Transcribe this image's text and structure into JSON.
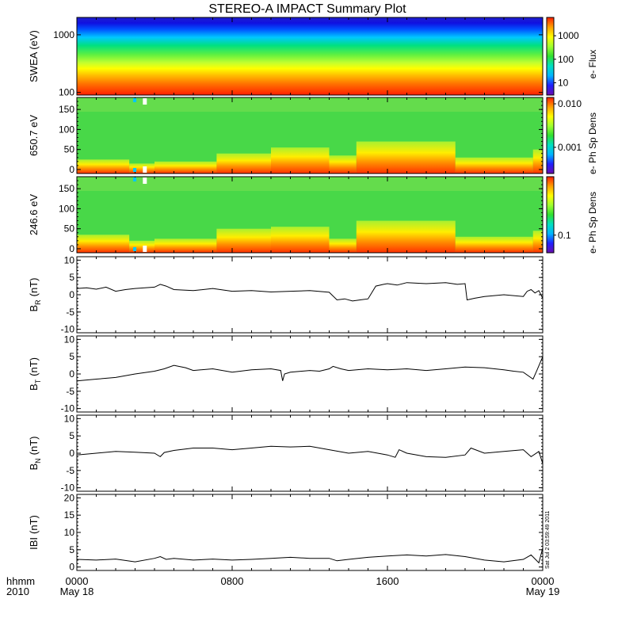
{
  "title": "STEREO-A IMPACT Summary Plot",
  "timestamp": "Sat Jul  2 03:59:49 2011",
  "time_axis": {
    "label_line1": "hhmm",
    "label_line2": "2010",
    "ticks": [
      {
        "hours": 0,
        "label": "0000",
        "date": "May 18"
      },
      {
        "hours": 8,
        "label": "0800",
        "date": ""
      },
      {
        "hours": 16,
        "label": "1600",
        "date": ""
      },
      {
        "hours": 24,
        "label": "0000",
        "date": "May 19"
      }
    ]
  },
  "colorscale": [
    "#6a0dad",
    "#2020ff",
    "#00b4ff",
    "#00e0c0",
    "#30e030",
    "#a0ff30",
    "#ffff00",
    "#ffa000",
    "#ff2000"
  ],
  "chart_data": [
    {
      "type": "heatmap",
      "ylabel": "SWEA (eV)",
      "yscale": "log",
      "ylim": [
        90,
        2000
      ],
      "yticks": [
        {
          "v": 100,
          "label": "100"
        },
        {
          "v": 1000,
          "label": "1000"
        }
      ],
      "colorbar": {
        "label": "e- Flux",
        "scale": "log",
        "range": [
          3,
          6000
        ],
        "ticks": [
          {
            "v": 10,
            "label": "10"
          },
          {
            "v": 100,
            "label": "100"
          },
          {
            "v": 1000,
            "label": "1000"
          }
        ]
      },
      "energy_color_profile": [
        {
          "energy": 90,
          "color": "#ff2000"
        },
        {
          "energy": 140,
          "color": "#ff7000"
        },
        {
          "energy": 200,
          "color": "#ffc000"
        },
        {
          "energy": 260,
          "color": "#ffff00"
        },
        {
          "energy": 330,
          "color": "#c0ff30"
        },
        {
          "energy": 450,
          "color": "#60f040"
        },
        {
          "energy": 650,
          "color": "#00e080"
        },
        {
          "energy": 900,
          "color": "#00c8ff"
        },
        {
          "energy": 1250,
          "color": "#0050ff"
        },
        {
          "energy": 1600,
          "color": "#1010e0"
        },
        {
          "energy": 2000,
          "color": "#2020d0"
        }
      ]
    },
    {
      "type": "heatmap",
      "ylabel": "650.7 eV",
      "ylim": [
        -10,
        180
      ],
      "yticks": [
        {
          "v": 0,
          "label": "0"
        },
        {
          "v": 50,
          "label": "50"
        },
        {
          "v": 100,
          "label": "100"
        },
        {
          "v": 150,
          "label": "150"
        }
      ],
      "colorbar": {
        "label": "e- Ph Sp Dens",
        "scale": "log",
        "range": [
          0.00025,
          0.014
        ],
        "ticks": [
          {
            "v": 0.001,
            "label": "0.001"
          },
          {
            "v": 0.01,
            "label": "0.010"
          }
        ]
      },
      "hot_level_by_hour": [
        {
          "start": 0,
          "end": 2.7,
          "level": 25
        },
        {
          "start": 2.7,
          "end": 4.0,
          "level": 15
        },
        {
          "start": 4.0,
          "end": 7.2,
          "level": 20
        },
        {
          "start": 7.2,
          "end": 10.0,
          "level": 40
        },
        {
          "start": 10.0,
          "end": 13.0,
          "level": 55
        },
        {
          "start": 13.0,
          "end": 14.4,
          "level": 35
        },
        {
          "start": 14.4,
          "end": 19.5,
          "level": 70
        },
        {
          "start": 19.5,
          "end": 23.5,
          "level": 30
        },
        {
          "start": 23.5,
          "end": 24.0,
          "level": 50
        }
      ]
    },
    {
      "type": "heatmap",
      "ylabel": "246.6 eV",
      "ylim": [
        -10,
        180
      ],
      "yticks": [
        {
          "v": 0,
          "label": "0"
        },
        {
          "v": 50,
          "label": "50"
        },
        {
          "v": 100,
          "label": "100"
        },
        {
          "v": 150,
          "label": "150"
        }
      ],
      "colorbar": {
        "label": "e- Ph Sp Dens",
        "scale": "log",
        "range": [
          0.05,
          1.0
        ],
        "ticks": [
          {
            "v": 0.1,
            "label": "0.1"
          }
        ]
      },
      "hot_level_by_hour": [
        {
          "start": 0,
          "end": 2.7,
          "level": 35
        },
        {
          "start": 2.7,
          "end": 4.0,
          "level": 20
        },
        {
          "start": 4.0,
          "end": 7.2,
          "level": 25
        },
        {
          "start": 7.2,
          "end": 10.0,
          "level": 50
        },
        {
          "start": 10.0,
          "end": 13.0,
          "level": 55
        },
        {
          "start": 13.0,
          "end": 14.4,
          "level": 25
        },
        {
          "start": 14.4,
          "end": 19.5,
          "level": 70
        },
        {
          "start": 19.5,
          "end": 23.5,
          "level": 30
        },
        {
          "start": 23.5,
          "end": 24.0,
          "level": 45
        }
      ]
    },
    {
      "type": "line",
      "ylabel_main": "B",
      "ylabel_sub": "R",
      "ylabel_unit": "(nT)",
      "ylim": [
        -11,
        11
      ],
      "yticks": [
        {
          "v": -10,
          "label": "-10"
        },
        {
          "v": -5,
          "label": "-5"
        },
        {
          "v": 0,
          "label": "0"
        },
        {
          "v": 5,
          "label": "5"
        },
        {
          "v": 10,
          "label": "10"
        }
      ],
      "x_hours": [
        0,
        0.5,
        1,
        1.5,
        2,
        2.5,
        3,
        3.5,
        4,
        4.3,
        4.6,
        5,
        6,
        7,
        8,
        9,
        10,
        11,
        12,
        13,
        13.4,
        13.8,
        14.2,
        14.6,
        15,
        15.4,
        15.8,
        16,
        16.5,
        17,
        18,
        19,
        19.6,
        20,
        20.1,
        20.5,
        21,
        22,
        23,
        23.2,
        23.4,
        23.6,
        23.8,
        24
      ],
      "y": [
        1.8,
        2.0,
        1.6,
        2.2,
        1.0,
        1.5,
        1.8,
        2.0,
        2.2,
        3.0,
        2.5,
        1.5,
        1.2,
        1.8,
        1.0,
        1.2,
        0.8,
        1.0,
        1.2,
        0.7,
        -1.5,
        -1.2,
        -1.8,
        -1.5,
        -1.2,
        2.5,
        3.0,
        3.2,
        2.8,
        3.5,
        3.2,
        3.5,
        3.0,
        3.2,
        -1.5,
        -1.0,
        -0.5,
        0.0,
        -0.5,
        1.0,
        1.5,
        0.5,
        1.2,
        -1.0
      ]
    },
    {
      "type": "line",
      "ylabel_main": "B",
      "ylabel_sub": "T",
      "ylabel_unit": "(nT)",
      "ylim": [
        -11,
        11
      ],
      "yticks": [
        {
          "v": -10,
          "label": "-10"
        },
        {
          "v": -5,
          "label": "-5"
        },
        {
          "v": 0,
          "label": "0"
        },
        {
          "v": 5,
          "label": "5"
        },
        {
          "v": 10,
          "label": "10"
        }
      ],
      "x_hours": [
        0,
        1,
        2,
        3,
        4,
        4.5,
        5,
        5.6,
        6,
        7,
        8,
        9,
        10,
        10.5,
        10.6,
        10.7,
        11,
        12,
        12.5,
        13,
        13.2,
        13.6,
        14,
        15,
        16,
        17,
        18,
        19,
        20,
        21,
        22,
        22.5,
        23,
        23.5,
        23.7,
        24
      ],
      "y": [
        -2.0,
        -1.5,
        -1.0,
        0.0,
        0.8,
        1.5,
        2.5,
        1.8,
        1.0,
        1.5,
        0.5,
        1.2,
        1.5,
        1.0,
        -2.0,
        0.0,
        0.5,
        1.0,
        0.8,
        1.5,
        2.2,
        1.5,
        1.0,
        1.5,
        1.2,
        1.5,
        1.0,
        1.5,
        2.0,
        1.8,
        1.2,
        0.8,
        0.5,
        -1.5,
        1.0,
        5.0
      ]
    },
    {
      "type": "line",
      "ylabel_main": "B",
      "ylabel_sub": "N",
      "ylabel_unit": "(nT)",
      "ylim": [
        -11,
        11
      ],
      "yticks": [
        {
          "v": -10,
          "label": "-10"
        },
        {
          "v": -5,
          "label": "-5"
        },
        {
          "v": 0,
          "label": "0"
        },
        {
          "v": 5,
          "label": "5"
        },
        {
          "v": 10,
          "label": "10"
        }
      ],
      "x_hours": [
        0,
        1,
        2,
        3,
        4,
        4.3,
        4.5,
        5,
        6,
        7,
        8,
        9,
        10,
        11,
        12,
        13,
        14,
        15,
        16,
        16.4,
        16.6,
        17,
        18,
        19,
        20,
        20.3,
        21,
        22,
        23,
        23.4,
        23.8,
        24
      ],
      "y": [
        -0.5,
        0.0,
        0.5,
        0.3,
        0.0,
        -1.0,
        0.2,
        0.8,
        1.5,
        1.5,
        1.0,
        1.5,
        2.0,
        1.8,
        2.0,
        1.0,
        0.0,
        0.5,
        -0.5,
        -1.2,
        1.0,
        0.0,
        -1.0,
        -1.2,
        -0.5,
        1.5,
        0.0,
        0.5,
        1.0,
        -1.0,
        0.5,
        -3.0
      ]
    },
    {
      "type": "line",
      "ylabel_main": "IBI",
      "ylabel_sub": "",
      "ylabel_unit": "(nT)",
      "ylim": [
        -1,
        21
      ],
      "yticks": [
        {
          "v": 0,
          "label": "0"
        },
        {
          "v": 5,
          "label": "5"
        },
        {
          "v": 10,
          "label": "10"
        },
        {
          "v": 15,
          "label": "15"
        },
        {
          "v": 20,
          "label": "20"
        }
      ],
      "x_hours": [
        0,
        1,
        2,
        3,
        4,
        4.3,
        4.6,
        5,
        6,
        7,
        8,
        9,
        10,
        11,
        12,
        13,
        13.4,
        14,
        15,
        16,
        17,
        18,
        19,
        20,
        21,
        22,
        23,
        23.4,
        23.8,
        24
      ],
      "y": [
        2.2,
        2.0,
        2.3,
        1.5,
        2.5,
        3.0,
        2.2,
        2.5,
        2.0,
        2.3,
        2.0,
        2.2,
        2.5,
        2.8,
        2.5,
        2.5,
        1.8,
        2.2,
        2.8,
        3.2,
        3.5,
        3.2,
        3.6,
        3.0,
        2.0,
        1.5,
        2.2,
        3.5,
        1.2,
        5.5
      ]
    }
  ]
}
